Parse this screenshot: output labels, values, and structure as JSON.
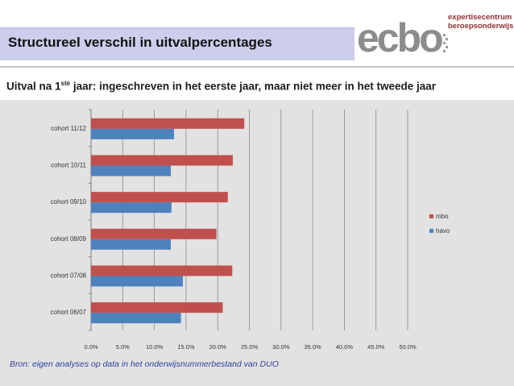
{
  "slide": {
    "title": "Structureel verschil in uitvalpercentages",
    "subtitle_pre": "Uitval na 1",
    "subtitle_sup": "ste",
    "subtitle_post": " jaar: ingeschreven in het eerste jaar, maar niet meer in het tweede jaar",
    "source": "Bron: eigen analyses op data in het onderwijsnummerbestand van DUO"
  },
  "logo": {
    "word": "ecbo",
    "line1": "expertisecentrum",
    "line2": "beroepsonderwijs"
  },
  "colors": {
    "mbo": "#c0504d",
    "havo": "#4f81bd",
    "band": "#cdcdec",
    "chart_bg": "#e2e2e2"
  },
  "chart_data": {
    "type": "bar",
    "orientation": "horizontal",
    "categories": [
      "cohort 06/07",
      "cohort 07/08",
      "cohort 08/09",
      "cohort 09/10",
      "cohort 10/11",
      "cohort 11/12"
    ],
    "series": [
      {
        "name": "mbo",
        "values": [
          20.8,
          22.3,
          19.8,
          21.6,
          22.4,
          24.2
        ]
      },
      {
        "name": "havo",
        "values": [
          14.2,
          14.5,
          12.6,
          12.7,
          12.6,
          13.1
        ]
      }
    ],
    "xlim": [
      0,
      50
    ],
    "xticks": [
      "0.0%",
      "5.0%",
      "10.0%",
      "15.0%",
      "20.0%",
      "25.0%",
      "30.0%",
      "35.0%",
      "40.0%",
      "45.0%",
      "50.0%"
    ],
    "grid": true,
    "legend_position": "right",
    "legend": [
      "mbo",
      "havo"
    ]
  }
}
